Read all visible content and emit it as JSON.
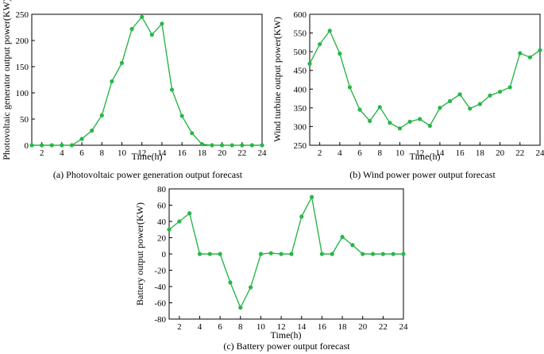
{
  "style": {
    "line_color": "#2bb54a",
    "marker_color": "#2bb54a",
    "axis_color": "#000000"
  },
  "chart_data": [
    {
      "type": "line",
      "caption": "(a) Photovoltaic power generation output forecast",
      "xlabel": "Time(h)",
      "ylabel": "Photovoltaic generator output power(KW)",
      "xlim": [
        1,
        24
      ],
      "ylim": [
        0,
        250
      ],
      "xticks": [
        2,
        4,
        6,
        8,
        10,
        12,
        14,
        16,
        18,
        20,
        22,
        24
      ],
      "yticks": [
        0,
        50,
        100,
        150,
        200,
        250
      ],
      "x": [
        1,
        2,
        3,
        4,
        5,
        6,
        7,
        8,
        9,
        10,
        11,
        12,
        13,
        14,
        15,
        16,
        17,
        18,
        19,
        20,
        21,
        22,
        23,
        24
      ],
      "values": [
        0,
        0,
        0,
        0,
        0,
        12,
        28,
        57,
        122,
        157,
        222,
        245,
        211,
        232,
        106,
        56,
        23,
        2,
        0,
        0,
        0,
        0,
        0,
        0
      ]
    },
    {
      "type": "line",
      "caption": "(b) Wind power power output forecast",
      "xlabel": "Time(h)",
      "ylabel": "Wind turbine output power(KW)",
      "xlim": [
        1,
        24
      ],
      "ylim": [
        250,
        600
      ],
      "xticks": [
        2,
        4,
        6,
        8,
        10,
        12,
        14,
        16,
        18,
        20,
        22,
        24
      ],
      "yticks": [
        250,
        300,
        350,
        400,
        450,
        500,
        550,
        600
      ],
      "x": [
        1,
        2,
        3,
        4,
        5,
        6,
        7,
        8,
        9,
        10,
        11,
        12,
        13,
        14,
        15,
        16,
        17,
        18,
        19,
        20,
        21,
        22,
        23,
        24
      ],
      "values": [
        468,
        520,
        556,
        495,
        405,
        345,
        315,
        352,
        310,
        295,
        313,
        320,
        302,
        350,
        368,
        386,
        348,
        360,
        383,
        393,
        405,
        496,
        485,
        504
      ]
    },
    {
      "type": "line",
      "caption": "(c) Battery power output forecast",
      "xlabel": "Time(h)",
      "ylabel": "Battery output power(KW)",
      "xlim": [
        1,
        24
      ],
      "ylim": [
        -80,
        80
      ],
      "xticks": [
        2,
        4,
        6,
        8,
        10,
        12,
        14,
        16,
        18,
        20,
        22,
        24
      ],
      "yticks": [
        -80,
        -60,
        -40,
        -20,
        0,
        20,
        40,
        60,
        80
      ],
      "x": [
        1,
        2,
        3,
        4,
        5,
        6,
        7,
        8,
        9,
        10,
        11,
        12,
        13,
        14,
        15,
        16,
        17,
        18,
        19,
        20,
        21,
        22,
        23,
        24
      ],
      "values": [
        30,
        40,
        50,
        0,
        0,
        0,
        -35,
        -66,
        -41,
        0,
        1,
        0,
        0,
        46,
        70,
        0,
        0,
        21,
        11,
        0,
        0,
        0,
        0,
        0
      ]
    }
  ]
}
